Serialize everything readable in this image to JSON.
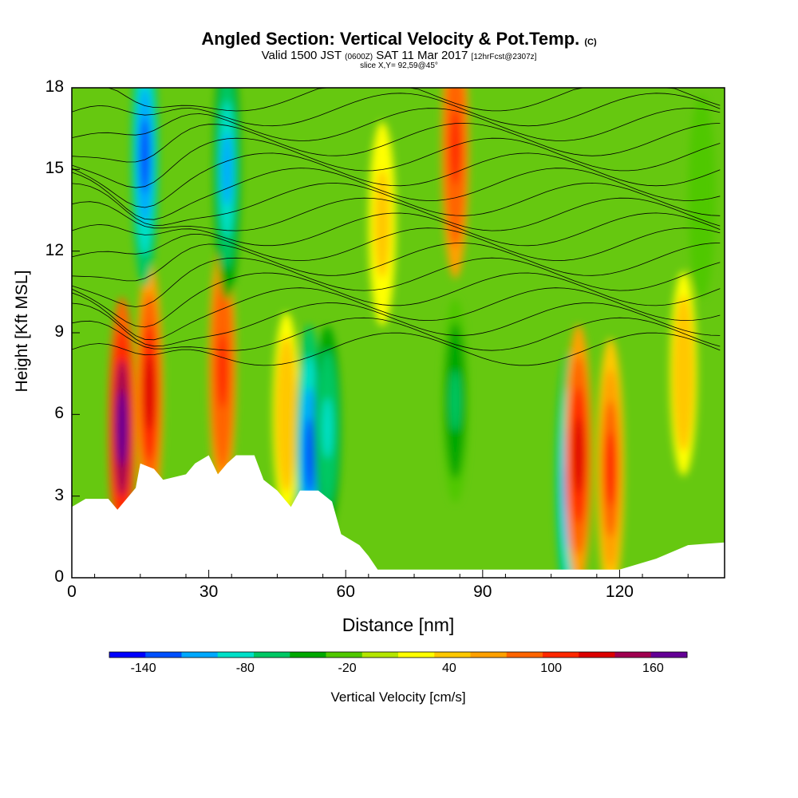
{
  "header": {
    "title_main": "Angled Section: Vertical Velocity & Pot.Temp.",
    "title_unit": "(C)",
    "valid_prefix": "Valid 1500 JST",
    "valid_utc": "(0600Z)",
    "valid_date": "SAT 11 Mar 2017",
    "forecast": "[12hrFcst@2307z]",
    "slice": "slice X,Y= 92,59@45°"
  },
  "chart_data": {
    "type": "heatmap",
    "xlabel": "Distance [nm]",
    "ylabel": "Height [Kft MSL]",
    "xlim": [
      0,
      143
    ],
    "ylim": [
      0,
      18
    ],
    "x_ticks": [
      0,
      30,
      60,
      90,
      120
    ],
    "y_ticks": [
      0,
      3,
      6,
      9,
      12,
      15,
      18
    ],
    "colorbar": {
      "label": "Vertical Velocity [cm/s]",
      "tick_labels": [
        "-140",
        "-80",
        "-20",
        "40",
        "100",
        "160"
      ],
      "tick_values": [
        -140,
        -80,
        -20,
        40,
        100,
        160
      ],
      "range": [
        -160,
        180
      ],
      "colors": [
        "#0000ff",
        "#0050ff",
        "#00a8ff",
        "#00e0c8",
        "#00c864",
        "#00a800",
        "#50c800",
        "#b4e600",
        "#ffff00",
        "#ffc800",
        "#ffa000",
        "#ff6400",
        "#ff2800",
        "#dc0000",
        "#a00050",
        "#640096"
      ]
    },
    "terrain_kft": [
      [
        0,
        2.6
      ],
      [
        3,
        2.9
      ],
      [
        8,
        2.9
      ],
      [
        10,
        2.5
      ],
      [
        12,
        2.9
      ],
      [
        14,
        3.3
      ],
      [
        15,
        4.2
      ],
      [
        18,
        4.0
      ],
      [
        20,
        3.6
      ],
      [
        25,
        3.8
      ],
      [
        27,
        4.2
      ],
      [
        30,
        4.5
      ],
      [
        32,
        3.8
      ],
      [
        34,
        4.2
      ],
      [
        36,
        4.5
      ],
      [
        40,
        4.5
      ],
      [
        42,
        3.6
      ],
      [
        45,
        3.2
      ],
      [
        48,
        2.6
      ],
      [
        50,
        3.2
      ],
      [
        54,
        3.2
      ],
      [
        57,
        2.8
      ],
      [
        59,
        1.6
      ],
      [
        63,
        1.2
      ],
      [
        65,
        0.8
      ],
      [
        67,
        0.3
      ],
      [
        85,
        0.3
      ],
      [
        90,
        0.3
      ],
      [
        120,
        0.3
      ],
      [
        128,
        0.7
      ],
      [
        135,
        1.2
      ],
      [
        143,
        1.3
      ]
    ],
    "vertical_velocity_cells": [
      {
        "x": 11,
        "z": 5.5,
        "w": 170
      },
      {
        "x": 17,
        "z": 6.8,
        "w": 120
      },
      {
        "x": 33,
        "z": 7.6,
        "w": 110
      },
      {
        "x": 47,
        "z": 6.0,
        "w": 50
      },
      {
        "x": 16,
        "z": 15.5,
        "w": -120
      },
      {
        "x": 34,
        "z": 15.0,
        "w": -100
      },
      {
        "x": 52,
        "z": 4.5,
        "w": -130
      },
      {
        "x": 56,
        "z": 5.5,
        "w": -80
      },
      {
        "x": 84,
        "z": 15.8,
        "w": 110
      },
      {
        "x": 84,
        "z": 6.5,
        "w": -60
      },
      {
        "x": 109,
        "z": 3.5,
        "w": -140
      },
      {
        "x": 111,
        "z": 4.5,
        "w": 130
      },
      {
        "x": 118,
        "z": 4.0,
        "w": 100
      },
      {
        "x": 134,
        "z": 7.5,
        "w": 50
      },
      {
        "x": 68,
        "z": 13.0,
        "w": 40
      },
      {
        "x": 138,
        "z": 14.0,
        "w": -30
      }
    ],
    "potential_temperature_contours_c": [
      6,
      8,
      10,
      12,
      14,
      16,
      18,
      20,
      22,
      24,
      26,
      28,
      30,
      32,
      34,
      36,
      38,
      40
    ]
  }
}
